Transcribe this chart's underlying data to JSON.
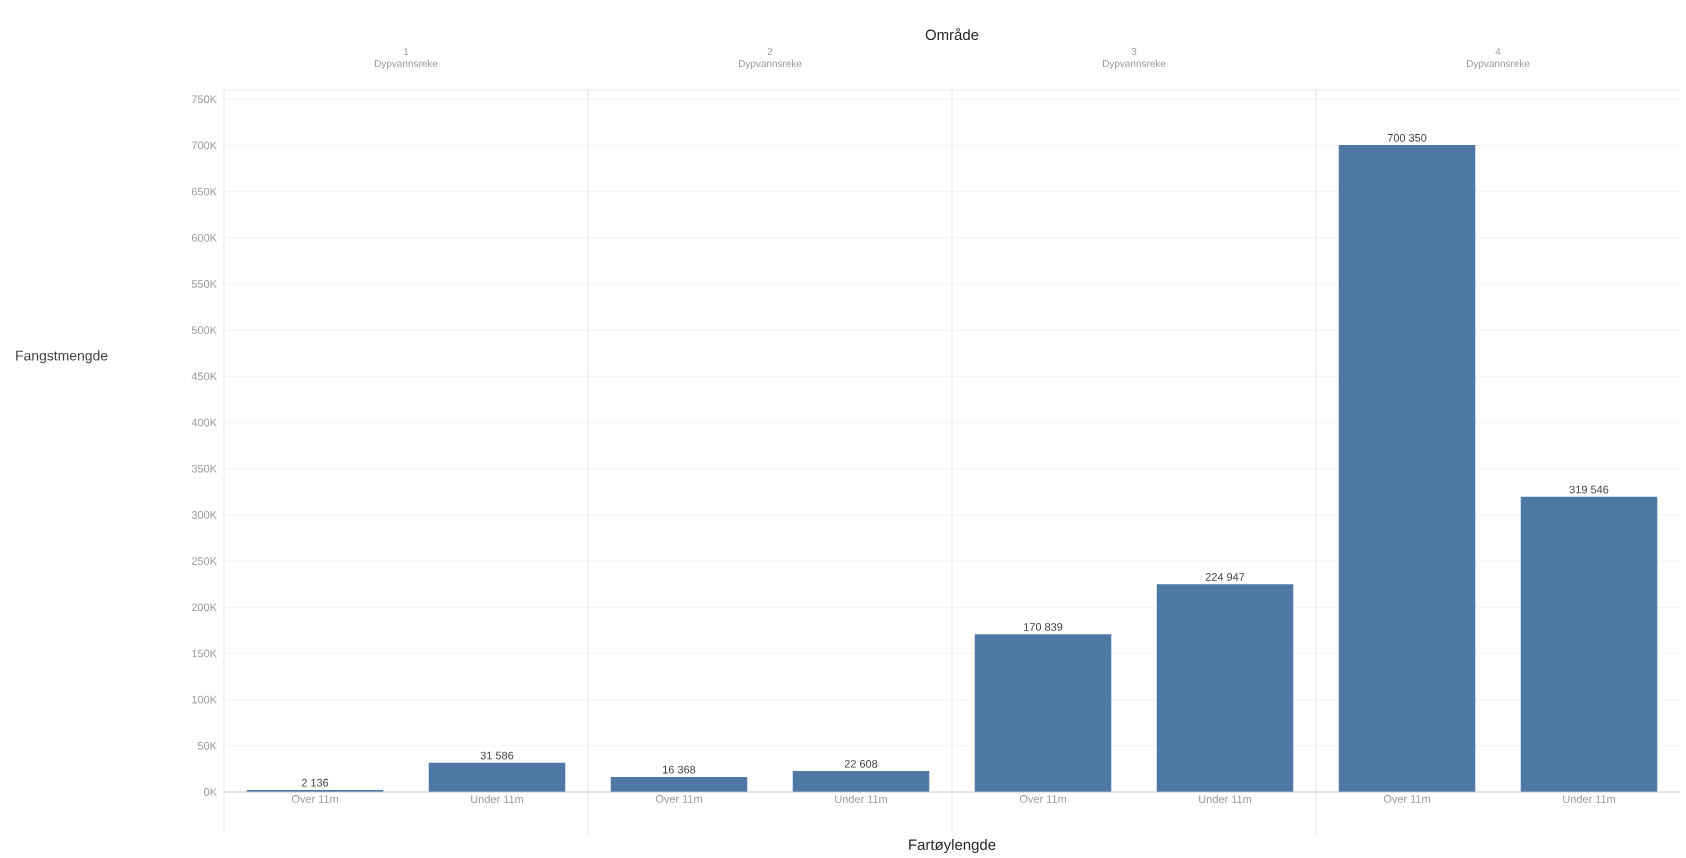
{
  "chart_data": [
    {
      "type": "bar",
      "title": "1",
      "subtitle": "Dypvannsreke",
      "ylabel": "Fangstmengde",
      "annotations": [
        "Område",
        "Fartøylengde"
      ],
      "categories": [
        "Over 11m",
        "Under 11m"
      ],
      "values": [
        2136,
        31586
      ],
      "value_labels": [
        "2 136",
        "31 586"
      ],
      "color": "#4e79a7",
      "ylim": [
        0,
        760000
      ],
      "yticks": [
        {
          "value": 0,
          "label": "0K"
        },
        {
          "value": 50000,
          "label": "50K"
        },
        {
          "value": 100000,
          "label": "100K"
        },
        {
          "value": 150000,
          "label": "150K"
        },
        {
          "value": 200000,
          "label": "200K"
        },
        {
          "value": 250000,
          "label": "250K"
        },
        {
          "value": 300000,
          "label": "300K"
        },
        {
          "value": 350000,
          "label": "350K"
        },
        {
          "value": 400000,
          "label": "400K"
        },
        {
          "value": 450000,
          "label": "450K"
        },
        {
          "value": 500000,
          "label": "500K"
        },
        {
          "value": 550000,
          "label": "550K"
        },
        {
          "value": 600000,
          "label": "600K"
        },
        {
          "value": 650000,
          "label": "650K"
        },
        {
          "value": 700000,
          "label": "700K"
        },
        {
          "value": 750000,
          "label": "750K"
        }
      ],
      "grid": "y"
    },
    {
      "type": "bar",
      "title": "2",
      "subtitle": "Dypvannsreke",
      "categories": [
        "Over 11m",
        "Under 11m"
      ],
      "values": [
        16368,
        22608
      ],
      "value_labels": [
        "16 368",
        "22 608"
      ],
      "color": "#4e79a7",
      "ylim": [
        0,
        760000
      ],
      "grid": "y",
      "tick_labels": "x"
    },
    {
      "type": "bar",
      "title": "3",
      "subtitle": "Dypvannsreke",
      "categories": [
        "Over 11m",
        "Under 11m"
      ],
      "values": [
        170839,
        224947
      ],
      "value_labels": [
        "170 839",
        "224 947"
      ],
      "color": "#4e79a7",
      "ylim": [
        0,
        760000
      ],
      "grid": "y",
      "tick_labels": "x"
    },
    {
      "type": "bar",
      "title": "4",
      "subtitle": "Dypvannsreke",
      "categories": [
        "Over 11m",
        "Under 11m"
      ],
      "values": [
        700350,
        319546
      ],
      "value_labels": [
        "700 350",
        "319 546"
      ],
      "color": "#4e79a7",
      "ylim": [
        0,
        760000
      ],
      "grid": "y",
      "tick_labels": "x"
    }
  ]
}
